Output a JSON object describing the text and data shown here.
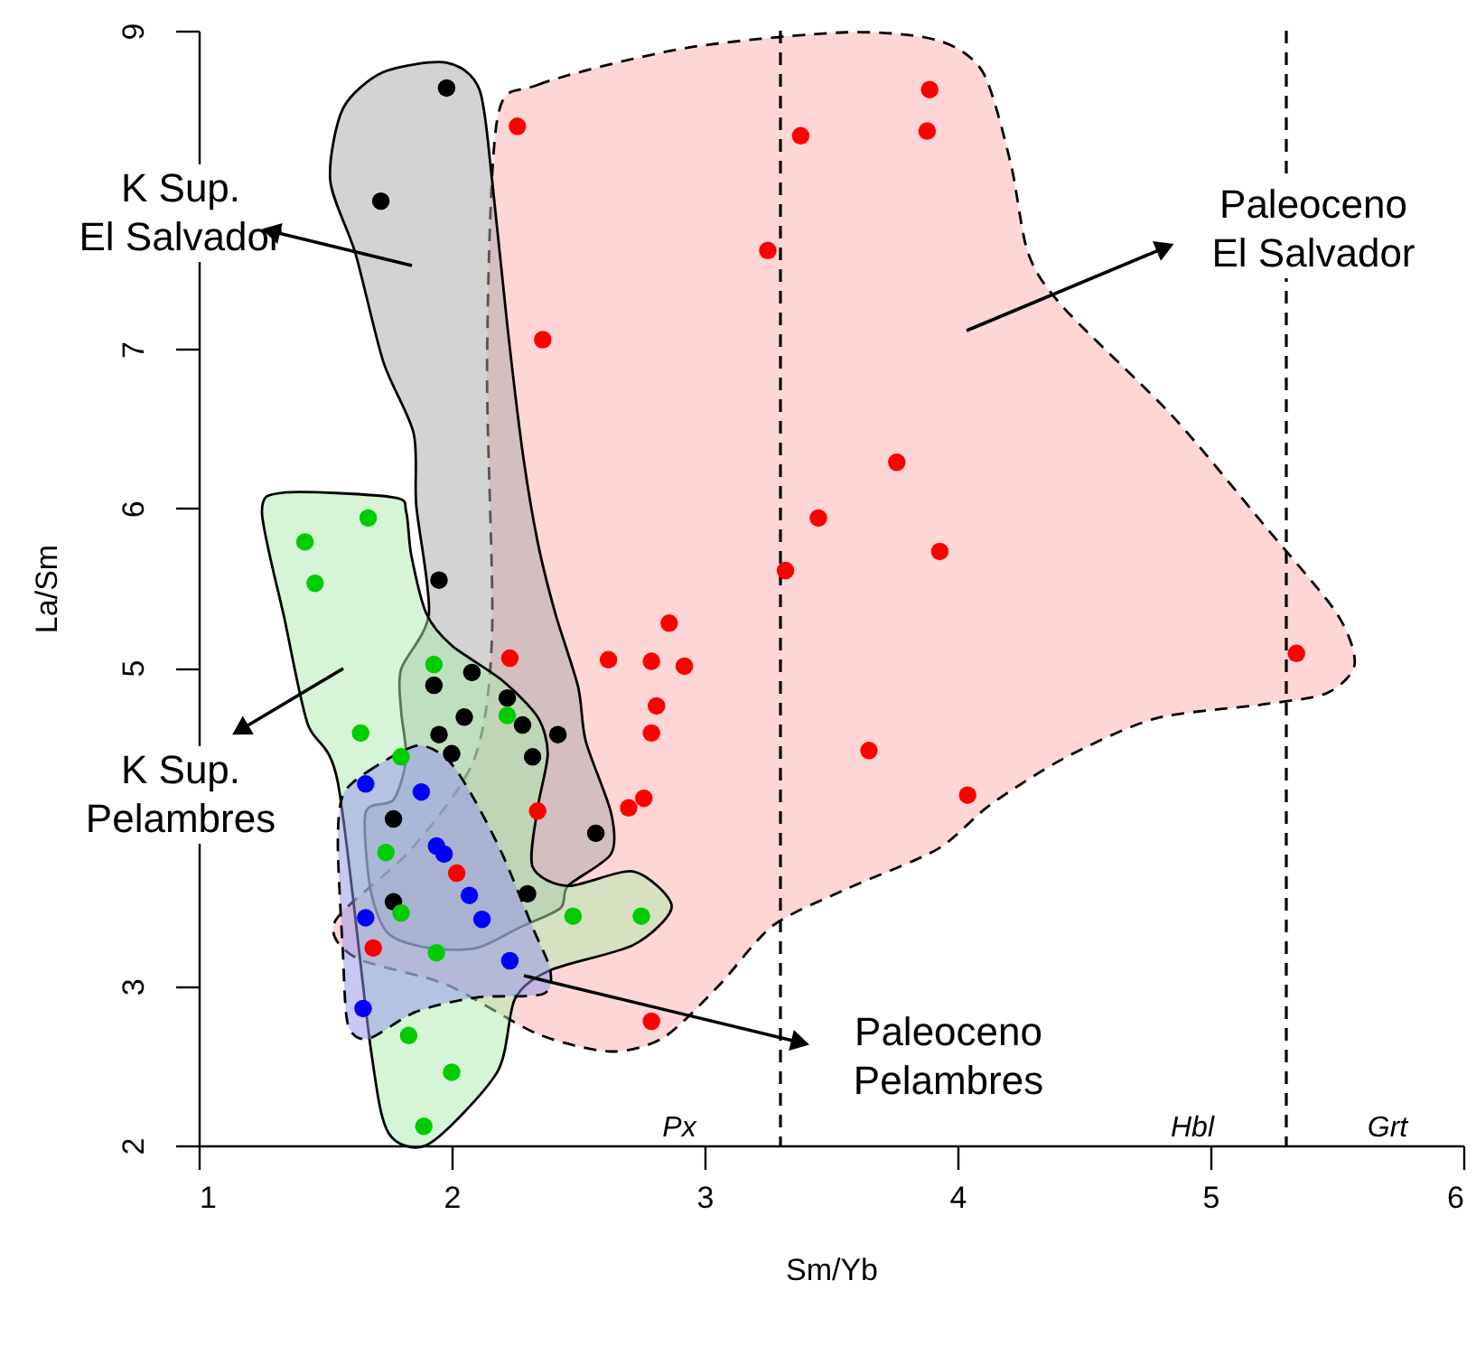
{
  "chart_data": {
    "type": "scatter",
    "xlabel": "Sm/Yb",
    "ylabel": "La/Sm",
    "xlim": [
      1,
      6
    ],
    "ylim": [
      2,
      9
    ],
    "xticks": [
      1,
      2,
      3,
      4,
      5,
      6
    ],
    "yticks": [
      2,
      3,
      5,
      6,
      7,
      9
    ],
    "grid": false,
    "marker": "circle",
    "series": [
      {
        "type": "area",
        "color": "#ffadad",
        "line_style": "dashed",
        "marker": "none",
        "x": [
          2.18,
          2.34,
          2.92,
          3.56,
          3.92,
          4.1,
          4.21,
          4.28,
          4.42,
          4.85,
          5.21,
          5.5,
          5.57,
          5.46,
          5.21,
          4.78,
          4.42,
          4.13,
          3.92,
          3.56,
          3.27,
          3.06,
          2.84,
          2.63,
          2.34,
          1.98,
          1.62,
          1.54,
          1.84,
          2.09,
          2.16,
          2.14
        ],
        "values": [
          8.44,
          8.66,
          8.89,
          8.99,
          8.94,
          8.74,
          8.17,
          7.6,
          7.26,
          6.58,
          5.9,
          5.34,
          5.02,
          4.84,
          4.77,
          4.68,
          4.43,
          4.14,
          3.86,
          3.61,
          3.38,
          3.01,
          2.68,
          2.59,
          2.7,
          3.01,
          3.18,
          3.41,
          3.86,
          4.43,
          5.22,
          6.92
        ]
      },
      {
        "type": "area",
        "color": "#a8a8a8",
        "line_style": "solid",
        "marker": "none",
        "x": [
          1.52,
          1.57,
          1.73,
          1.98,
          2.11,
          2.16,
          2.22,
          2.28,
          2.34,
          2.41,
          2.5,
          2.53,
          2.63,
          2.63,
          2.46,
          2.43,
          2.27,
          2.1,
          1.91,
          1.75,
          1.68,
          1.66,
          1.77,
          1.82,
          1.8,
          1.8,
          1.91,
          1.86,
          1.85,
          1.73,
          1.62
        ],
        "values": [
          8.06,
          8.51,
          8.74,
          8.8,
          8.63,
          8.06,
          7.15,
          6.36,
          5.79,
          5.34,
          4.88,
          4.54,
          4.09,
          3.83,
          3.63,
          3.49,
          3.37,
          3.24,
          3.24,
          3.33,
          3.6,
          4.09,
          4.17,
          4.43,
          4.73,
          4.99,
          5.34,
          6.02,
          6.47,
          6.92,
          7.6
        ]
      },
      {
        "type": "area",
        "color": "#adebad",
        "line_style": "solid",
        "marker": "none",
        "x": [
          1.25,
          1.34,
          1.77,
          1.82,
          1.84,
          1.9,
          2.0,
          2.2,
          2.34,
          2.38,
          2.34,
          2.32,
          2.46,
          2.72,
          2.87,
          2.72,
          2.39,
          2.25,
          2.18,
          1.91,
          1.75,
          1.68,
          1.55,
          1.43,
          1.34
        ],
        "values": [
          5.98,
          6.1,
          6.07,
          5.98,
          5.71,
          5.34,
          5.14,
          4.92,
          4.69,
          4.46,
          4.12,
          3.75,
          3.63,
          3.72,
          3.5,
          3.26,
          3.1,
          2.92,
          2.46,
          2.01,
          2.08,
          2.61,
          4.28,
          4.65,
          5.3
        ]
      },
      {
        "type": "area",
        "color": "#9191eb",
        "line_style": "dashed",
        "marker": "none",
        "x": [
          1.57,
          1.67,
          1.86,
          1.98,
          2.08,
          2.2,
          2.32,
          2.39,
          2.36,
          2.1,
          1.86,
          1.67,
          1.59,
          1.57,
          1.55
        ],
        "values": [
          4.2,
          4.35,
          4.51,
          4.43,
          4.2,
          3.83,
          3.37,
          3.1,
          2.95,
          2.93,
          2.84,
          2.67,
          2.76,
          3.21,
          3.89
        ]
      },
      {
        "color": "#ff0000",
        "x": [
          2.26,
          3.38,
          3.89,
          3.88,
          3.25,
          2.36,
          3.76,
          3.45,
          3.32,
          3.93,
          2.23,
          2.62,
          2.79,
          2.92,
          2.86,
          2.81,
          2.79,
          3.65,
          4.04,
          2.76,
          2.7,
          2.34,
          5.34,
          2.79,
          2.02,
          1.69
        ],
        "values": [
          8.4,
          8.34,
          8.63,
          8.37,
          7.62,
          7.06,
          6.29,
          5.94,
          5.61,
          5.73,
          5.06,
          5.05,
          5.04,
          5.01,
          5.28,
          4.76,
          4.59,
          4.48,
          4.2,
          4.18,
          4.12,
          4.1,
          5.09,
          2.78,
          3.71,
          3.24
        ]
      },
      {
        "color": "#000000",
        "x": [
          1.98,
          1.72,
          1.95,
          2.08,
          1.93,
          2.22,
          2.05,
          2.28,
          2.42,
          1.95,
          2.0,
          2.32,
          2.57,
          1.77,
          2.3,
          1.77
        ],
        "values": [
          8.64,
          7.93,
          5.55,
          4.97,
          4.89,
          4.81,
          4.69,
          4.64,
          4.58,
          4.58,
          4.46,
          4.44,
          3.96,
          4.05,
          3.58,
          3.53
        ]
      },
      {
        "color": "#00cc00",
        "x": [
          1.67,
          1.42,
          1.46,
          1.93,
          2.22,
          1.64,
          1.8,
          1.74,
          1.8,
          1.94,
          2.48,
          2.75,
          1.83,
          2.0,
          1.89
        ],
        "values": [
          5.94,
          5.79,
          5.53,
          5.02,
          4.7,
          4.59,
          4.44,
          3.84,
          3.46,
          3.21,
          3.44,
          3.44,
          2.69,
          2.46,
          2.12
        ]
      },
      {
        "color": "#0000ff",
        "x": [
          1.66,
          1.88,
          1.94,
          1.97,
          2.07,
          2.12,
          1.66,
          2.23,
          1.65
        ],
        "values": [
          4.27,
          4.22,
          3.88,
          3.83,
          3.57,
          3.42,
          3.43,
          3.16,
          2.86
        ]
      }
    ],
    "ref_lines": [
      {
        "axis": "x",
        "value": 3.3,
        "color": "#000000",
        "line_style": "dashed"
      },
      {
        "axis": "x",
        "value": 5.3,
        "color": "#000000",
        "line_style": "dashed"
      }
    ],
    "annotations": [
      "Paleoceno\nEl Salvador",
      "K Sup.\nEl Salvador",
      "K Sup.\nPelambres",
      "Paleoceno\nPelambres",
      "Px",
      "Hbl",
      "Grt"
    ]
  }
}
